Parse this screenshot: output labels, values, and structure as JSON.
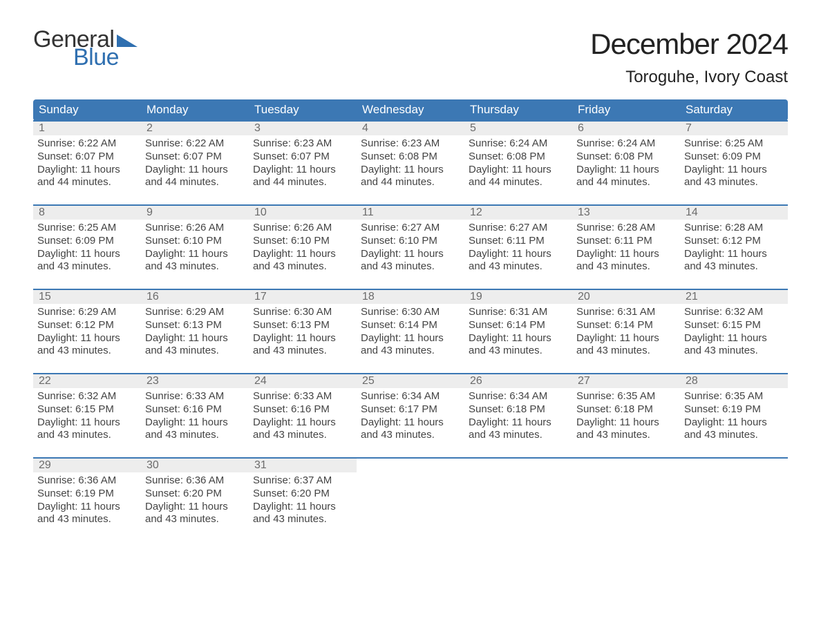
{
  "logo": {
    "text1": "General",
    "text2": "Blue",
    "color_general": "#333333",
    "color_blue": "#2f6fb0"
  },
  "title": "December 2024",
  "location": "Toroguhe, Ivory Coast",
  "header_bg": "#3c78b4",
  "header_fg": "#ffffff",
  "daynum_bg": "#ededed",
  "daynum_fg": "#6b6b6b",
  "border_color": "#3c78b4",
  "body_color": "#444444",
  "font_family": "Arial",
  "title_fontsize": 42,
  "location_fontsize": 24,
  "header_fontsize": 17,
  "body_fontsize": 15,
  "day_headers": [
    "Sunday",
    "Monday",
    "Tuesday",
    "Wednesday",
    "Thursday",
    "Friday",
    "Saturday"
  ],
  "weeks": [
    [
      {
        "n": "1",
        "sr": "Sunrise: 6:22 AM",
        "ss": "Sunset: 6:07 PM",
        "dl1": "Daylight: 11 hours",
        "dl2": "and 44 minutes."
      },
      {
        "n": "2",
        "sr": "Sunrise: 6:22 AM",
        "ss": "Sunset: 6:07 PM",
        "dl1": "Daylight: 11 hours",
        "dl2": "and 44 minutes."
      },
      {
        "n": "3",
        "sr": "Sunrise: 6:23 AM",
        "ss": "Sunset: 6:07 PM",
        "dl1": "Daylight: 11 hours",
        "dl2": "and 44 minutes."
      },
      {
        "n": "4",
        "sr": "Sunrise: 6:23 AM",
        "ss": "Sunset: 6:08 PM",
        "dl1": "Daylight: 11 hours",
        "dl2": "and 44 minutes."
      },
      {
        "n": "5",
        "sr": "Sunrise: 6:24 AM",
        "ss": "Sunset: 6:08 PM",
        "dl1": "Daylight: 11 hours",
        "dl2": "and 44 minutes."
      },
      {
        "n": "6",
        "sr": "Sunrise: 6:24 AM",
        "ss": "Sunset: 6:08 PM",
        "dl1": "Daylight: 11 hours",
        "dl2": "and 44 minutes."
      },
      {
        "n": "7",
        "sr": "Sunrise: 6:25 AM",
        "ss": "Sunset: 6:09 PM",
        "dl1": "Daylight: 11 hours",
        "dl2": "and 43 minutes."
      }
    ],
    [
      {
        "n": "8",
        "sr": "Sunrise: 6:25 AM",
        "ss": "Sunset: 6:09 PM",
        "dl1": "Daylight: 11 hours",
        "dl2": "and 43 minutes."
      },
      {
        "n": "9",
        "sr": "Sunrise: 6:26 AM",
        "ss": "Sunset: 6:10 PM",
        "dl1": "Daylight: 11 hours",
        "dl2": "and 43 minutes."
      },
      {
        "n": "10",
        "sr": "Sunrise: 6:26 AM",
        "ss": "Sunset: 6:10 PM",
        "dl1": "Daylight: 11 hours",
        "dl2": "and 43 minutes."
      },
      {
        "n": "11",
        "sr": "Sunrise: 6:27 AM",
        "ss": "Sunset: 6:10 PM",
        "dl1": "Daylight: 11 hours",
        "dl2": "and 43 minutes."
      },
      {
        "n": "12",
        "sr": "Sunrise: 6:27 AM",
        "ss": "Sunset: 6:11 PM",
        "dl1": "Daylight: 11 hours",
        "dl2": "and 43 minutes."
      },
      {
        "n": "13",
        "sr": "Sunrise: 6:28 AM",
        "ss": "Sunset: 6:11 PM",
        "dl1": "Daylight: 11 hours",
        "dl2": "and 43 minutes."
      },
      {
        "n": "14",
        "sr": "Sunrise: 6:28 AM",
        "ss": "Sunset: 6:12 PM",
        "dl1": "Daylight: 11 hours",
        "dl2": "and 43 minutes."
      }
    ],
    [
      {
        "n": "15",
        "sr": "Sunrise: 6:29 AM",
        "ss": "Sunset: 6:12 PM",
        "dl1": "Daylight: 11 hours",
        "dl2": "and 43 minutes."
      },
      {
        "n": "16",
        "sr": "Sunrise: 6:29 AM",
        "ss": "Sunset: 6:13 PM",
        "dl1": "Daylight: 11 hours",
        "dl2": "and 43 minutes."
      },
      {
        "n": "17",
        "sr": "Sunrise: 6:30 AM",
        "ss": "Sunset: 6:13 PM",
        "dl1": "Daylight: 11 hours",
        "dl2": "and 43 minutes."
      },
      {
        "n": "18",
        "sr": "Sunrise: 6:30 AM",
        "ss": "Sunset: 6:14 PM",
        "dl1": "Daylight: 11 hours",
        "dl2": "and 43 minutes."
      },
      {
        "n": "19",
        "sr": "Sunrise: 6:31 AM",
        "ss": "Sunset: 6:14 PM",
        "dl1": "Daylight: 11 hours",
        "dl2": "and 43 minutes."
      },
      {
        "n": "20",
        "sr": "Sunrise: 6:31 AM",
        "ss": "Sunset: 6:14 PM",
        "dl1": "Daylight: 11 hours",
        "dl2": "and 43 minutes."
      },
      {
        "n": "21",
        "sr": "Sunrise: 6:32 AM",
        "ss": "Sunset: 6:15 PM",
        "dl1": "Daylight: 11 hours",
        "dl2": "and 43 minutes."
      }
    ],
    [
      {
        "n": "22",
        "sr": "Sunrise: 6:32 AM",
        "ss": "Sunset: 6:15 PM",
        "dl1": "Daylight: 11 hours",
        "dl2": "and 43 minutes."
      },
      {
        "n": "23",
        "sr": "Sunrise: 6:33 AM",
        "ss": "Sunset: 6:16 PM",
        "dl1": "Daylight: 11 hours",
        "dl2": "and 43 minutes."
      },
      {
        "n": "24",
        "sr": "Sunrise: 6:33 AM",
        "ss": "Sunset: 6:16 PM",
        "dl1": "Daylight: 11 hours",
        "dl2": "and 43 minutes."
      },
      {
        "n": "25",
        "sr": "Sunrise: 6:34 AM",
        "ss": "Sunset: 6:17 PM",
        "dl1": "Daylight: 11 hours",
        "dl2": "and 43 minutes."
      },
      {
        "n": "26",
        "sr": "Sunrise: 6:34 AM",
        "ss": "Sunset: 6:18 PM",
        "dl1": "Daylight: 11 hours",
        "dl2": "and 43 minutes."
      },
      {
        "n": "27",
        "sr": "Sunrise: 6:35 AM",
        "ss": "Sunset: 6:18 PM",
        "dl1": "Daylight: 11 hours",
        "dl2": "and 43 minutes."
      },
      {
        "n": "28",
        "sr": "Sunrise: 6:35 AM",
        "ss": "Sunset: 6:19 PM",
        "dl1": "Daylight: 11 hours",
        "dl2": "and 43 minutes."
      }
    ],
    [
      {
        "n": "29",
        "sr": "Sunrise: 6:36 AM",
        "ss": "Sunset: 6:19 PM",
        "dl1": "Daylight: 11 hours",
        "dl2": "and 43 minutes."
      },
      {
        "n": "30",
        "sr": "Sunrise: 6:36 AM",
        "ss": "Sunset: 6:20 PM",
        "dl1": "Daylight: 11 hours",
        "dl2": "and 43 minutes."
      },
      {
        "n": "31",
        "sr": "Sunrise: 6:37 AM",
        "ss": "Sunset: 6:20 PM",
        "dl1": "Daylight: 11 hours",
        "dl2": "and 43 minutes."
      },
      null,
      null,
      null,
      null
    ]
  ]
}
